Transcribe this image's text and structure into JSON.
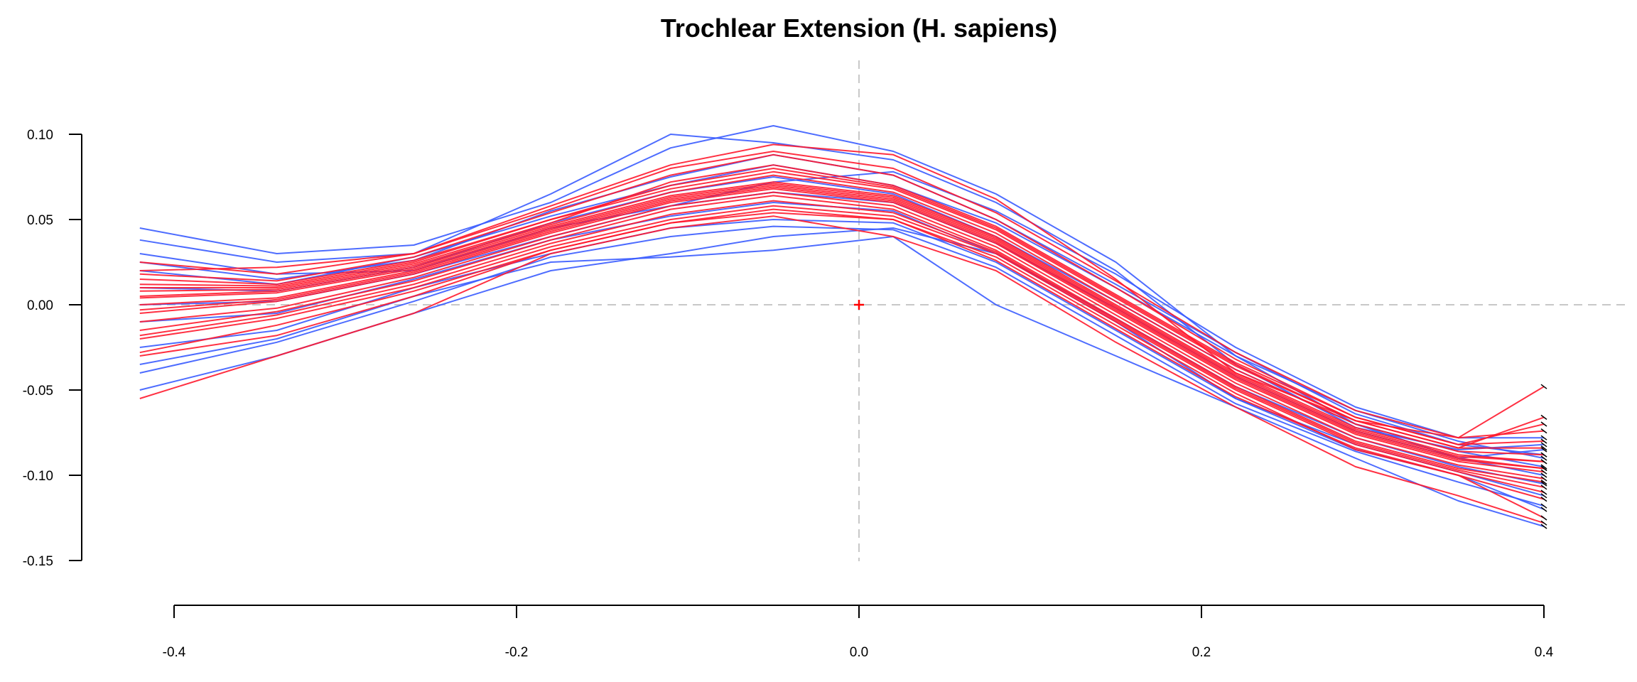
{
  "chart_data": {
    "type": "line",
    "title": "Trochlear Extension (H. sapiens)",
    "xlabel": "",
    "ylabel": "",
    "xlim": [
      -0.42,
      0.42
    ],
    "ylim": [
      -0.15,
      0.1
    ],
    "x_ticks": [
      -0.4,
      -0.2,
      0.0,
      0.2,
      0.4
    ],
    "x_tick_labels": [
      "-0.4",
      "-0.2",
      "0.0",
      "0.2",
      "0.4"
    ],
    "y_ticks": [
      0.1,
      0.05,
      0.0,
      -0.05,
      -0.1,
      -0.15
    ],
    "y_tick_labels": [
      "0.10",
      "0.05",
      "0.00",
      "-0.05",
      "-0.10",
      "-0.15"
    ],
    "reference_lines": {
      "x": 0.0,
      "y": 0.0,
      "style": "dashed",
      "color": "#c8c8c8"
    },
    "centroid_marker": {
      "x": 0.0,
      "y": 0.0,
      "symbol": "+",
      "color": "#ff0000"
    },
    "grid": false,
    "legend": "none",
    "colors": {
      "group_a": "#3a5cff",
      "group_b": "#ff1a2e",
      "endpoint_ticks": "#000000"
    },
    "landmark_x": [
      -0.42,
      -0.34,
      -0.26,
      -0.18,
      -0.11,
      -0.05,
      0.02,
      0.08,
      0.15,
      0.22,
      0.29,
      0.35,
      0.4
    ],
    "mean_shape_y": [
      0.005,
      0.01,
      0.022,
      0.045,
      0.06,
      0.068,
      0.058,
      0.035,
      -0.005,
      -0.045,
      -0.075,
      -0.088,
      -0.095
    ],
    "series": [
      {
        "color": "#3a5cff",
        "x": [
          -0.42,
          -0.34,
          -0.26,
          -0.18,
          -0.11,
          -0.05,
          0.02,
          0.08,
          0.15,
          0.22,
          0.29,
          0.35,
          0.4
        ],
        "y": [
          0.045,
          0.03,
          0.035,
          0.06,
          0.092,
          0.105,
          0.09,
          0.065,
          0.025,
          -0.03,
          -0.07,
          -0.09,
          -0.085
        ]
      },
      {
        "color": "#3a5cff",
        "x": [
          -0.42,
          -0.34,
          -0.26,
          -0.18,
          -0.11,
          -0.05,
          0.02,
          0.08,
          0.15,
          0.22,
          0.29,
          0.35,
          0.4
        ],
        "y": [
          0.038,
          0.025,
          0.03,
          0.065,
          0.1,
          0.095,
          0.085,
          0.06,
          0.02,
          -0.035,
          -0.072,
          -0.085,
          -0.082
        ]
      },
      {
        "color": "#3a5cff",
        "x": [
          -0.42,
          -0.34,
          -0.26,
          -0.18,
          -0.11,
          -0.05,
          0.02,
          0.08,
          0.15,
          0.22,
          0.29,
          0.35,
          0.4
        ],
        "y": [
          -0.05,
          -0.03,
          -0.005,
          0.02,
          0.03,
          0.04,
          0.045,
          0.03,
          -0.01,
          -0.055,
          -0.085,
          -0.1,
          -0.12
        ]
      },
      {
        "color": "#3a5cff",
        "x": [
          -0.42,
          -0.34,
          -0.26,
          -0.18,
          -0.11,
          -0.05,
          0.02,
          0.08,
          0.15,
          0.22,
          0.29,
          0.35,
          0.4
        ],
        "y": [
          -0.035,
          -0.02,
          0.005,
          0.025,
          0.028,
          0.032,
          0.04,
          0.0,
          -0.03,
          -0.06,
          -0.09,
          -0.115,
          -0.13
        ]
      },
      {
        "color": "#3a5cff",
        "x": [
          -0.42,
          -0.34,
          -0.26,
          -0.18,
          -0.11,
          -0.05,
          0.02,
          0.08,
          0.15,
          0.22,
          0.29,
          0.35,
          0.4
        ],
        "y": [
          0.02,
          0.012,
          0.028,
          0.052,
          0.07,
          0.082,
          0.07,
          0.048,
          0.01,
          -0.03,
          -0.062,
          -0.08,
          -0.09
        ]
      },
      {
        "color": "#3a5cff",
        "x": [
          -0.42,
          -0.34,
          -0.26,
          -0.18,
          -0.11,
          -0.05,
          0.02,
          0.08,
          0.15,
          0.22,
          0.29,
          0.35,
          0.4
        ],
        "y": [
          -0.01,
          -0.005,
          0.015,
          0.038,
          0.052,
          0.06,
          0.055,
          0.03,
          -0.008,
          -0.048,
          -0.078,
          -0.095,
          -0.105
        ]
      },
      {
        "color": "#3a5cff",
        "x": [
          -0.42,
          -0.34,
          -0.26,
          -0.18,
          -0.11,
          -0.05,
          0.02,
          0.08,
          0.15,
          0.22,
          0.29,
          0.35,
          0.4
        ],
        "y": [
          0.03,
          0.018,
          0.02,
          0.045,
          0.058,
          0.072,
          0.078,
          0.055,
          0.018,
          -0.025,
          -0.06,
          -0.078,
          -0.078
        ]
      },
      {
        "color": "#3a5cff",
        "x": [
          -0.42,
          -0.34,
          -0.26,
          -0.18,
          -0.11,
          -0.05,
          0.02,
          0.08,
          0.15,
          0.22,
          0.29,
          0.35,
          0.4
        ],
        "y": [
          -0.025,
          -0.015,
          0.01,
          0.03,
          0.045,
          0.05,
          0.048,
          0.025,
          -0.015,
          -0.055,
          -0.082,
          -0.098,
          -0.112
        ]
      },
      {
        "color": "#3a5cff",
        "x": [
          -0.42,
          -0.34,
          -0.26,
          -0.18,
          -0.11,
          -0.05,
          0.02,
          0.08,
          0.15,
          0.22,
          0.29,
          0.35,
          0.4
        ],
        "y": [
          0.01,
          0.008,
          0.022,
          0.048,
          0.066,
          0.075,
          0.065,
          0.04,
          0.002,
          -0.038,
          -0.07,
          -0.086,
          -0.095
        ]
      },
      {
        "color": "#3a5cff",
        "x": [
          -0.42,
          -0.34,
          -0.26,
          -0.18,
          -0.11,
          -0.05,
          0.02,
          0.08,
          0.15,
          0.22,
          0.29,
          0.35,
          0.4
        ],
        "y": [
          0.0,
          0.002,
          0.018,
          0.04,
          0.058,
          0.066,
          0.06,
          0.036,
          -0.002,
          -0.042,
          -0.074,
          -0.09,
          -0.1
        ]
      },
      {
        "color": "#3a5cff",
        "x": [
          -0.42,
          -0.34,
          -0.26,
          -0.18,
          -0.11,
          -0.05,
          0.02,
          0.08,
          0.15,
          0.22,
          0.29,
          0.35,
          0.4
        ],
        "y": [
          0.025,
          0.015,
          0.026,
          0.055,
          0.075,
          0.088,
          0.076,
          0.05,
          0.012,
          -0.028,
          -0.064,
          -0.082,
          -0.088
        ]
      },
      {
        "color": "#3a5cff",
        "x": [
          -0.42,
          -0.34,
          -0.26,
          -0.18,
          -0.11,
          -0.05,
          0.02,
          0.08,
          0.15,
          0.22,
          0.29,
          0.35,
          0.4
        ],
        "y": [
          -0.04,
          -0.022,
          0.002,
          0.028,
          0.04,
          0.046,
          0.044,
          0.022,
          -0.018,
          -0.058,
          -0.086,
          -0.104,
          -0.118
        ]
      },
      {
        "color": "#ff1a2e",
        "x": [
          -0.42,
          -0.34,
          -0.26,
          -0.18,
          -0.11,
          -0.05,
          0.02,
          0.08,
          0.15,
          0.22,
          0.29,
          0.35,
          0.4
        ],
        "y": [
          0.02,
          0.022,
          0.03,
          0.058,
          0.082,
          0.094,
          0.088,
          0.062,
          0.015,
          -0.04,
          -0.068,
          -0.078,
          -0.048
        ]
      },
      {
        "color": "#ff1a2e",
        "x": [
          -0.42,
          -0.34,
          -0.26,
          -0.18,
          -0.11,
          -0.05,
          0.02,
          0.08,
          0.15,
          0.22,
          0.29,
          0.35,
          0.4
        ],
        "y": [
          -0.055,
          -0.03,
          -0.005,
          0.03,
          0.045,
          0.052,
          0.04,
          0.02,
          -0.022,
          -0.06,
          -0.095,
          -0.112,
          -0.128
        ]
      },
      {
        "color": "#ff1a2e",
        "x": [
          -0.42,
          -0.34,
          -0.26,
          -0.18,
          -0.11,
          -0.05,
          0.02,
          0.08,
          0.15,
          0.22,
          0.29,
          0.35,
          0.4
        ],
        "y": [
          -0.03,
          -0.018,
          0.005,
          0.032,
          0.048,
          0.056,
          0.05,
          0.028,
          -0.012,
          -0.052,
          -0.085,
          -0.1,
          -0.125
        ]
      },
      {
        "color": "#ff1a2e",
        "x": [
          -0.42,
          -0.34,
          -0.26,
          -0.18,
          -0.11,
          -0.05,
          0.02,
          0.08,
          0.15,
          0.22,
          0.29,
          0.35,
          0.4
        ],
        "y": [
          0.015,
          0.012,
          0.026,
          0.05,
          0.068,
          0.078,
          0.068,
          0.044,
          0.004,
          -0.036,
          -0.068,
          -0.084,
          -0.066
        ]
      },
      {
        "color": "#ff1a2e",
        "x": [
          -0.42,
          -0.34,
          -0.26,
          -0.18,
          -0.11,
          -0.05,
          0.02,
          0.08,
          0.15,
          0.22,
          0.29,
          0.35,
          0.4
        ],
        "y": [
          0.005,
          0.008,
          0.022,
          0.046,
          0.064,
          0.072,
          0.064,
          0.04,
          0.0,
          -0.04,
          -0.072,
          -0.088,
          -0.092
        ]
      },
      {
        "color": "#ff1a2e",
        "x": [
          -0.42,
          -0.34,
          -0.26,
          -0.18,
          -0.11,
          -0.05,
          0.02,
          0.08,
          0.15,
          0.22,
          0.29,
          0.35,
          0.4
        ],
        "y": [
          -0.005,
          0.002,
          0.018,
          0.042,
          0.06,
          0.068,
          0.06,
          0.036,
          -0.004,
          -0.044,
          -0.076,
          -0.092,
          -0.098
        ]
      },
      {
        "color": "#ff1a2e",
        "x": [
          -0.42,
          -0.34,
          -0.26,
          -0.18,
          -0.11,
          -0.05,
          0.02,
          0.08,
          0.15,
          0.22,
          0.29,
          0.35,
          0.4
        ],
        "y": [
          -0.015,
          -0.004,
          0.014,
          0.038,
          0.056,
          0.064,
          0.056,
          0.032,
          -0.008,
          -0.048,
          -0.08,
          -0.096,
          -0.104
        ]
      },
      {
        "color": "#ff1a2e",
        "x": [
          -0.42,
          -0.34,
          -0.26,
          -0.18,
          -0.11,
          -0.05,
          0.02,
          0.08,
          0.15,
          0.22,
          0.29,
          0.35,
          0.4
        ],
        "y": [
          0.01,
          0.01,
          0.024,
          0.048,
          0.072,
          0.082,
          0.07,
          0.046,
          0.006,
          -0.034,
          -0.066,
          -0.082,
          -0.08
        ]
      },
      {
        "color": "#ff1a2e",
        "x": [
          -0.42,
          -0.34,
          -0.26,
          -0.18,
          -0.11,
          -0.05,
          0.02,
          0.08,
          0.15,
          0.22,
          0.29,
          0.35,
          0.4
        ],
        "y": [
          -0.02,
          -0.008,
          0.01,
          0.034,
          0.05,
          0.058,
          0.052,
          0.03,
          -0.01,
          -0.05,
          -0.082,
          -0.098,
          -0.11
        ]
      },
      {
        "color": "#ff1a2e",
        "x": [
          -0.42,
          -0.34,
          -0.26,
          -0.18,
          -0.11,
          -0.05,
          0.02,
          0.08,
          0.15,
          0.22,
          0.29,
          0.35,
          0.4
        ],
        "y": [
          0.0,
          0.004,
          0.02,
          0.044,
          0.062,
          0.07,
          0.062,
          0.038,
          -0.002,
          -0.042,
          -0.074,
          -0.09,
          -0.096
        ]
      },
      {
        "color": "#ff1a2e",
        "x": [
          -0.42,
          -0.34,
          -0.26,
          -0.18,
          -0.11,
          -0.05,
          0.02,
          0.08,
          0.15,
          0.22,
          0.29,
          0.35,
          0.4
        ],
        "y": [
          0.018,
          0.014,
          0.028,
          0.054,
          0.076,
          0.088,
          0.076,
          0.05,
          0.01,
          -0.032,
          -0.066,
          -0.082,
          -0.07
        ]
      },
      {
        "color": "#ff1a2e",
        "x": [
          -0.42,
          -0.34,
          -0.26,
          -0.18,
          -0.11,
          -0.05,
          0.02,
          0.08,
          0.15,
          0.22,
          0.29,
          0.35,
          0.4
        ],
        "y": [
          -0.01,
          -0.002,
          0.016,
          0.04,
          0.058,
          0.066,
          0.058,
          0.034,
          -0.006,
          -0.046,
          -0.078,
          -0.094,
          -0.102
        ]
      },
      {
        "color": "#ff1a2e",
        "x": [
          -0.42,
          -0.34,
          -0.26,
          -0.18,
          -0.11,
          -0.05,
          0.02,
          0.08,
          0.15,
          0.22,
          0.29,
          0.35,
          0.4
        ],
        "y": [
          0.008,
          0.009,
          0.023,
          0.047,
          0.066,
          0.076,
          0.066,
          0.042,
          0.002,
          -0.038,
          -0.07,
          -0.086,
          -0.088
        ]
      },
      {
        "color": "#ff1a2e",
        "x": [
          -0.42,
          -0.34,
          -0.26,
          -0.18,
          -0.11,
          -0.05,
          0.02,
          0.08,
          0.15,
          0.22,
          0.29,
          0.35,
          0.4
        ],
        "y": [
          -0.028,
          -0.012,
          0.008,
          0.032,
          0.048,
          0.054,
          0.05,
          0.026,
          -0.014,
          -0.054,
          -0.084,
          -0.1,
          -0.114
        ]
      },
      {
        "color": "#ff1a2e",
        "x": [
          -0.42,
          -0.34,
          -0.26,
          -0.18,
          -0.11,
          -0.05,
          0.02,
          0.08,
          0.15,
          0.22,
          0.29,
          0.35,
          0.4
        ],
        "y": [
          0.025,
          0.018,
          0.03,
          0.056,
          0.08,
          0.09,
          0.08,
          0.054,
          0.014,
          -0.028,
          -0.062,
          -0.078,
          -0.074
        ]
      },
      {
        "color": "#ff1a2e",
        "x": [
          -0.42,
          -0.34,
          -0.26,
          -0.18,
          -0.11,
          -0.05,
          0.02,
          0.08,
          0.15,
          0.22,
          0.29,
          0.35,
          0.4
        ],
        "y": [
          -0.003,
          0.003,
          0.019,
          0.043,
          0.061,
          0.069,
          0.061,
          0.037,
          -0.003,
          -0.043,
          -0.075,
          -0.091,
          -0.096
        ]
      },
      {
        "color": "#ff1a2e",
        "x": [
          -0.42,
          -0.34,
          -0.26,
          -0.18,
          -0.11,
          -0.05,
          0.02,
          0.08,
          0.15,
          0.22,
          0.29,
          0.35,
          0.4
        ],
        "y": [
          0.012,
          0.011,
          0.025,
          0.05,
          0.07,
          0.08,
          0.069,
          0.045,
          0.005,
          -0.035,
          -0.068,
          -0.084,
          -0.084
        ]
      },
      {
        "color": "#ff1a2e",
        "x": [
          -0.42,
          -0.34,
          -0.26,
          -0.18,
          -0.11,
          -0.05,
          0.02,
          0.08,
          0.15,
          0.22,
          0.29,
          0.35,
          0.4
        ],
        "y": [
          -0.018,
          -0.006,
          0.012,
          0.036,
          0.053,
          0.061,
          0.054,
          0.031,
          -0.009,
          -0.049,
          -0.081,
          -0.097,
          -0.107
        ]
      },
      {
        "color": "#ff1a2e",
        "x": [
          -0.42,
          -0.34,
          -0.26,
          -0.18,
          -0.11,
          -0.05,
          0.02,
          0.08,
          0.15,
          0.22,
          0.29,
          0.35,
          0.4
        ],
        "y": [
          0.004,
          0.007,
          0.021,
          0.045,
          0.063,
          0.071,
          0.063,
          0.039,
          -0.001,
          -0.041,
          -0.073,
          -0.089,
          -0.092
        ]
      }
    ]
  }
}
